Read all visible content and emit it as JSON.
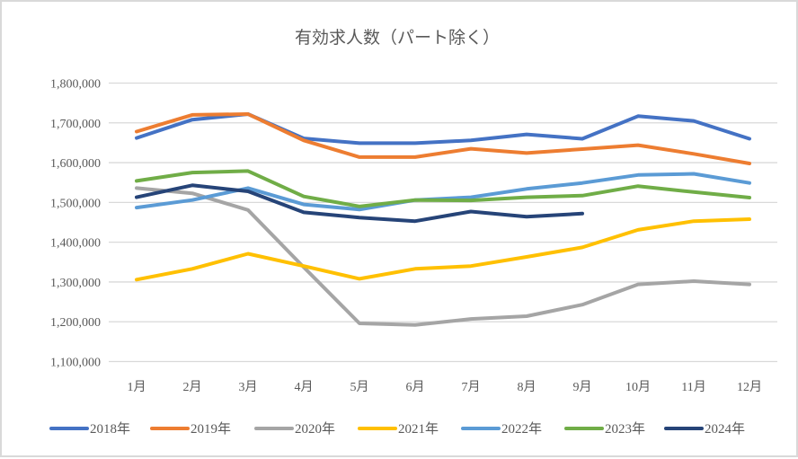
{
  "chart_data": {
    "type": "line",
    "title": "有効求人数（パート除く）",
    "xlabel": "",
    "ylabel": "",
    "categories": [
      "1月",
      "2月",
      "3月",
      "4月",
      "5月",
      "6月",
      "7月",
      "8月",
      "9月",
      "10月",
      "11月",
      "12月"
    ],
    "ylim": [
      1100000,
      1800000
    ],
    "yticks": [
      1100000,
      1200000,
      1300000,
      1400000,
      1500000,
      1600000,
      1700000,
      1800000
    ],
    "ytick_labels": [
      "1,100,000",
      "1,200,000",
      "1,300,000",
      "1,400,000",
      "1,500,000",
      "1,600,000",
      "1,700,000",
      "1,800,000"
    ],
    "grid": true,
    "legend_position": "bottom",
    "series": [
      {
        "name": "2018年",
        "color": "#4472C4",
        "values": [
          1662000,
          1708000,
          1722000,
          1661000,
          1649000,
          1649000,
          1656000,
          1671000,
          1660000,
          1717000,
          1705000,
          1660000
        ]
      },
      {
        "name": "2019年",
        "color": "#ED7D31",
        "values": [
          1678000,
          1720000,
          1722000,
          1656000,
          1614000,
          1614000,
          1635000,
          1624000,
          1634000,
          1644000,
          1622000,
          1598000
        ]
      },
      {
        "name": "2020年",
        "color": "#A5A5A5",
        "values": [
          1536000,
          1523000,
          1481000,
          1337000,
          1196000,
          1192000,
          1207000,
          1214000,
          1243000,
          1294000,
          1302000,
          1294000
        ]
      },
      {
        "name": "2021年",
        "color": "#FFC000",
        "values": [
          1306000,
          1333000,
          1371000,
          1340000,
          1308000,
          1333000,
          1340000,
          1363000,
          1387000,
          1431000,
          1453000,
          1458000
        ]
      },
      {
        "name": "2022年",
        "color": "#5B9BD5",
        "values": [
          1487000,
          1506000,
          1536000,
          1495000,
          1482000,
          1506000,
          1513000,
          1534000,
          1549000,
          1569000,
          1572000,
          1549000
        ]
      },
      {
        "name": "2023年",
        "color": "#70AD47",
        "values": [
          1554000,
          1575000,
          1579000,
          1515000,
          1490000,
          1506000,
          1505000,
          1513000,
          1517000,
          1541000,
          1526000,
          1512000
        ]
      },
      {
        "name": "2024年",
        "color": "#264478",
        "values": [
          1513000,
          1543000,
          1528000,
          1475000,
          1462000,
          1453000,
          1477000,
          1464000,
          1472000,
          null,
          null,
          null
        ]
      }
    ]
  }
}
